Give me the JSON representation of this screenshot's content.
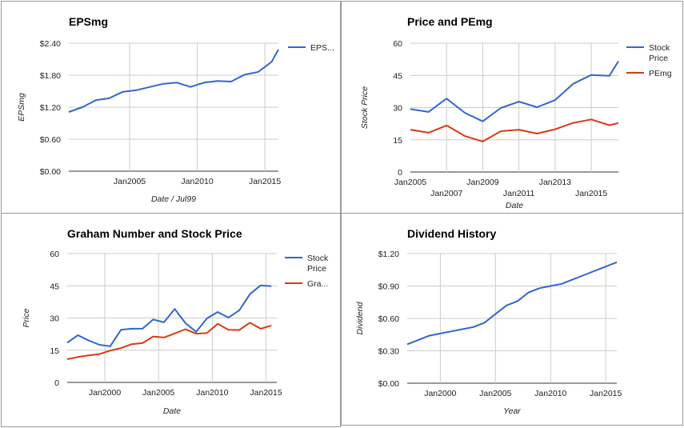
{
  "chart_data": [
    {
      "type": "line",
      "title": "EPSmg",
      "xlabel": "Date / Jul99",
      "ylabel": "EPSmg",
      "y_ticks": [
        "$0.00",
        "$0.60",
        "$1.20",
        "$1.80",
        "$2.40"
      ],
      "ylim": [
        0,
        2.4
      ],
      "x_ticks": [
        "Jan2005",
        "Jan2010",
        "Jan2015"
      ],
      "x": [
        2000.5,
        2001.5,
        2002.5,
        2003.5,
        2004.5,
        2005.5,
        2006.5,
        2007.5,
        2008.5,
        2009.5,
        2010.5,
        2011.5,
        2012.5,
        2013.5,
        2014.5,
        2015.5,
        2016.0
      ],
      "xlim": [
        2000.5,
        2016.0
      ],
      "legend_position": "right",
      "series": [
        {
          "name": "EPS...",
          "color": "#3366cc",
          "values": [
            1.11,
            1.2,
            1.33,
            1.37,
            1.49,
            1.52,
            1.58,
            1.64,
            1.66,
            1.58,
            1.66,
            1.69,
            1.68,
            1.81,
            1.86,
            2.05,
            2.28
          ]
        }
      ]
    },
    {
      "type": "line",
      "title": "Price and PEmg",
      "xlabel": "Date",
      "ylabel": "Stock Price",
      "y_ticks": [
        "0",
        "15",
        "30",
        "45",
        "60"
      ],
      "ylim": [
        0,
        60
      ],
      "x_ticks": [
        "Jan2005",
        "Jan2007",
        "Jan2009",
        "Jan2011",
        "Jan2013",
        "Jan2015"
      ],
      "x": [
        2005,
        2006,
        2007,
        2008,
        2009,
        2010,
        2011,
        2012,
        2013,
        2014,
        2015,
        2016,
        2016.5
      ],
      "xlim": [
        2005,
        2016.5
      ],
      "legend_position": "right",
      "series": [
        {
          "name": "Stock Price",
          "color": "#3366cc",
          "values": [
            29.3,
            28.0,
            34.2,
            27.6,
            23.6,
            29.8,
            32.8,
            30.2,
            33.5,
            41.1,
            45.2,
            44.8,
            51.6
          ]
        },
        {
          "name": "PEmg",
          "color": "#dc3912",
          "values": [
            19.7,
            18.3,
            21.7,
            16.8,
            14.2,
            19.0,
            19.7,
            17.9,
            19.9,
            22.9,
            24.5,
            21.8,
            22.8
          ]
        }
      ]
    },
    {
      "type": "line",
      "title": "Graham Number and Stock Price",
      "xlabel": "Date",
      "ylabel": "Price",
      "y_ticks": [
        "0",
        "15",
        "30",
        "45",
        "60"
      ],
      "ylim": [
        0,
        60
      ],
      "x_ticks": [
        "Jan2000",
        "Jan2005",
        "Jan2010",
        "Jan2015"
      ],
      "xlim": [
        1996.5,
        2016
      ],
      "legend_position": "right",
      "series": [
        {
          "name": "Stock Price",
          "color": "#3366cc",
          "x": [
            1996.5,
            1997.5,
            1998.5,
            1999.5,
            2000.5,
            2001.5,
            2002.5,
            2003.5,
            2004.5,
            2005.5,
            2006.5,
            2007.5,
            2008.5,
            2009.5,
            2010.5,
            2011.5,
            2012.5,
            2013.5,
            2014.5,
            2015.5
          ],
          "values": [
            18.5,
            22.0,
            19.5,
            17.5,
            16.8,
            24.5,
            25.0,
            25.0,
            29.3,
            28.0,
            34.2,
            27.6,
            23.6,
            29.8,
            32.8,
            30.2,
            33.5,
            41.1,
            45.2,
            44.8
          ]
        },
        {
          "name": "Gra...",
          "color": "#dc3912",
          "x": [
            1996.5,
            1997.5,
            1998.5,
            1999.5,
            2000.5,
            2001.5,
            2002.5,
            2003.5,
            2004.5,
            2005.5,
            2006.5,
            2007.5,
            2008.5,
            2009.5,
            2010.5,
            2011.5,
            2012.5,
            2013.5,
            2014.5,
            2015.5
          ],
          "values": [
            10.8,
            11.8,
            12.6,
            13.2,
            14.8,
            16.0,
            17.8,
            18.3,
            21.4,
            20.9,
            22.8,
            24.8,
            22.7,
            23.0,
            27.3,
            24.5,
            24.4,
            27.8,
            25.0,
            26.5
          ]
        }
      ]
    },
    {
      "type": "line",
      "title": "Dividend History",
      "xlabel": "Year",
      "ylabel": "Dividend",
      "y_ticks": [
        "$0.00",
        "$0.30",
        "$0.60",
        "$0.90",
        "$1.20"
      ],
      "ylim": [
        0,
        1.2
      ],
      "x_ticks": [
        "Jan2000",
        "Jan2005",
        "Jan2010",
        "Jan2015"
      ],
      "x": [
        1997,
        1999,
        2000,
        2001,
        2002,
        2003,
        2004,
        2005,
        2006,
        2007,
        2008,
        2009,
        2010,
        2011,
        2012,
        2013,
        2014,
        2015,
        2016
      ],
      "xlim": [
        1997,
        2016
      ],
      "legend_position": "none",
      "series": [
        {
          "name": "Dividend",
          "color": "#3366cc",
          "values": [
            0.36,
            0.44,
            0.46,
            0.48,
            0.5,
            0.52,
            0.56,
            0.64,
            0.72,
            0.76,
            0.84,
            0.88,
            0.9,
            0.92,
            0.96,
            1.0,
            1.04,
            1.08,
            1.12
          ]
        }
      ]
    }
  ]
}
